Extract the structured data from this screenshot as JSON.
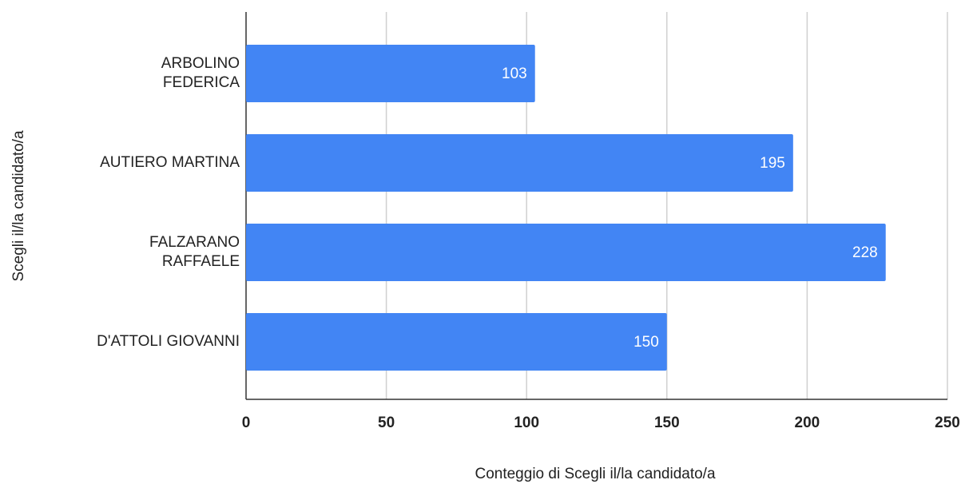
{
  "chart_data": {
    "type": "bar",
    "orientation": "horizontal",
    "xlabel": "Conteggio di Scegli il/la candidato/a",
    "ylabel": "Scegli il/la candidato/a",
    "categories": [
      "ARBOLINO\nFEDERICA",
      "AUTIERO MARTINA",
      "FALZARANO\nRAFFAELE",
      "D'ATTOLI GIOVANNI"
    ],
    "values": [
      103,
      195,
      228,
      150
    ],
    "color": "#4285f4",
    "xlim": [
      0,
      250
    ],
    "xticks": [
      0,
      50,
      100,
      150,
      200,
      250
    ],
    "grid": true
  }
}
